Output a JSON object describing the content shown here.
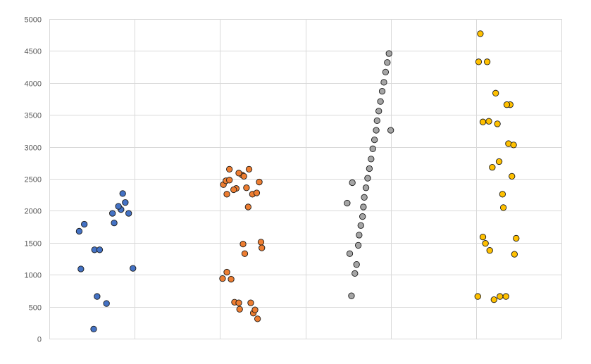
{
  "chart_data": {
    "type": "scatter",
    "title": "",
    "xlabel": "",
    "ylabel": "",
    "xlim": [
      0,
      6
    ],
    "ylim": [
      0,
      5000
    ],
    "x_ticks": [
      0,
      1,
      2,
      3,
      4,
      5,
      6
    ],
    "y_ticks": [
      0,
      500,
      1000,
      1500,
      2000,
      2500,
      3000,
      3500,
      4000,
      4500,
      5000
    ],
    "y_tick_labels": [
      "0",
      "500",
      "1000",
      "1500",
      "2000",
      "2500",
      "3000",
      "3500",
      "4000",
      "4500",
      "5000"
    ],
    "grid": {
      "horizontal": true,
      "vertical": true
    },
    "legend": "none",
    "series": [
      {
        "color": "#4472c4",
        "points": [
          [
            0.52,
            150
          ],
          [
            0.67,
            550
          ],
          [
            0.56,
            660
          ],
          [
            0.37,
            1090
          ],
          [
            0.98,
            1100
          ],
          [
            0.53,
            1390
          ],
          [
            0.59,
            1390
          ],
          [
            0.35,
            1680
          ],
          [
            0.41,
            1790
          ],
          [
            0.76,
            1810
          ],
          [
            0.74,
            1960
          ],
          [
            0.84,
            2020
          ],
          [
            0.81,
            2070
          ],
          [
            0.89,
            2130
          ],
          [
            0.86,
            2270
          ],
          [
            0.93,
            1960
          ]
        ]
      },
      {
        "color": "#ed7d31",
        "points": [
          [
            2.08,
            2260
          ],
          [
            2.04,
            2410
          ],
          [
            2.07,
            2470
          ],
          [
            2.11,
            2480
          ],
          [
            2.19,
            2350
          ],
          [
            2.16,
            2330
          ],
          [
            2.31,
            2360
          ],
          [
            2.38,
            2260
          ],
          [
            2.43,
            2280
          ],
          [
            2.26,
            2560
          ],
          [
            2.22,
            2590
          ],
          [
            2.28,
            2540
          ],
          [
            2.11,
            2650
          ],
          [
            2.34,
            2650
          ],
          [
            2.46,
            2450
          ],
          [
            2.33,
            2060
          ],
          [
            2.27,
            1480
          ],
          [
            2.29,
            1330
          ],
          [
            2.48,
            1510
          ],
          [
            2.49,
            1420
          ],
          [
            2.03,
            940
          ],
          [
            2.08,
            1040
          ],
          [
            2.13,
            930
          ],
          [
            2.17,
            570
          ],
          [
            2.22,
            560
          ],
          [
            2.23,
            460
          ],
          [
            2.36,
            560
          ],
          [
            2.39,
            400
          ],
          [
            2.41,
            450
          ],
          [
            2.44,
            310
          ]
        ]
      },
      {
        "color": "#a5a5a5",
        "points": [
          [
            3.54,
            670
          ],
          [
            3.58,
            1020
          ],
          [
            3.6,
            1160
          ],
          [
            3.52,
            1330
          ],
          [
            3.62,
            1460
          ],
          [
            3.63,
            1620
          ],
          [
            3.65,
            1770
          ],
          [
            3.67,
            1910
          ],
          [
            3.68,
            2060
          ],
          [
            3.69,
            2210
          ],
          [
            3.71,
            2360
          ],
          [
            3.49,
            2120
          ],
          [
            3.55,
            2440
          ],
          [
            3.73,
            2510
          ],
          [
            3.75,
            2660
          ],
          [
            3.77,
            2810
          ],
          [
            3.79,
            2970
          ],
          [
            3.81,
            3110
          ],
          [
            3.83,
            3260
          ],
          [
            3.84,
            3410
          ],
          [
            3.86,
            3560
          ],
          [
            3.88,
            3710
          ],
          [
            3.9,
            3870
          ],
          [
            3.92,
            4010
          ],
          [
            3.94,
            4170
          ],
          [
            3.96,
            4320
          ],
          [
            3.98,
            4460
          ],
          [
            4.0,
            3260
          ]
        ]
      },
      {
        "color": "#ffc000",
        "points": [
          [
            5.05,
            4770
          ],
          [
            5.03,
            4330
          ],
          [
            5.13,
            4330
          ],
          [
            5.23,
            3840
          ],
          [
            5.4,
            3660
          ],
          [
            5.36,
            3660
          ],
          [
            5.08,
            3390
          ],
          [
            5.15,
            3400
          ],
          [
            5.25,
            3360
          ],
          [
            5.38,
            3050
          ],
          [
            5.44,
            3030
          ],
          [
            5.27,
            2770
          ],
          [
            5.19,
            2680
          ],
          [
            5.42,
            2540
          ],
          [
            5.31,
            2260
          ],
          [
            5.32,
            2050
          ],
          [
            5.08,
            1590
          ],
          [
            5.11,
            1490
          ],
          [
            5.16,
            1380
          ],
          [
            5.47,
            1570
          ],
          [
            5.45,
            1320
          ],
          [
            5.02,
            660
          ],
          [
            5.21,
            610
          ],
          [
            5.28,
            660
          ],
          [
            5.35,
            660
          ]
        ]
      }
    ]
  }
}
